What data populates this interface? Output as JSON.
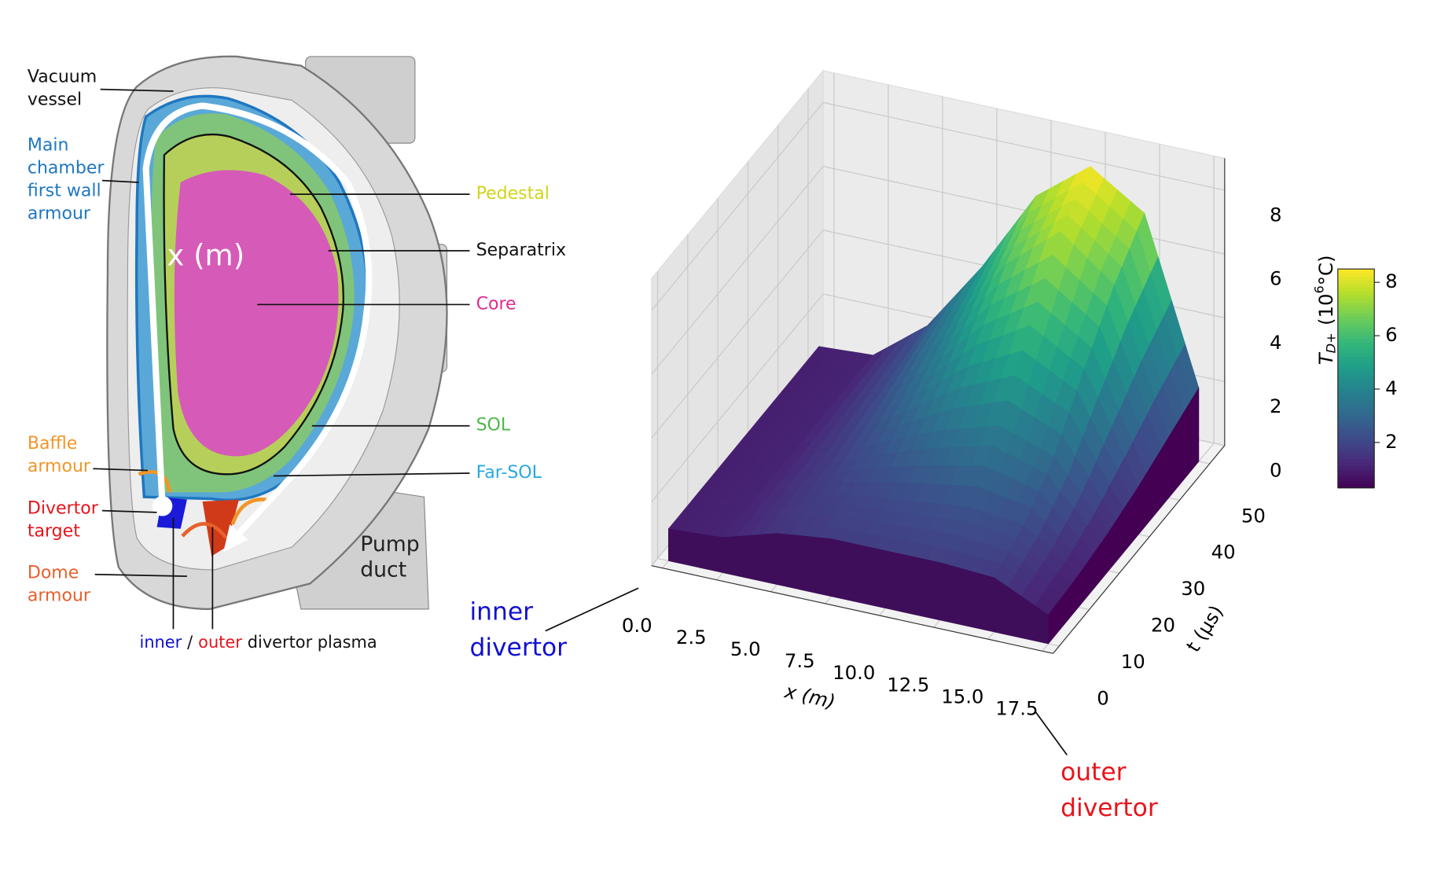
{
  "diagram": {
    "labels": [
      {
        "lines": [
          "Vacuum",
          "vessel"
        ],
        "color": "#111111"
      },
      {
        "lines": [
          "Main",
          "chamber",
          "first wall",
          "armour"
        ],
        "color": "#1f77c0"
      },
      {
        "lines": [
          "Baffle",
          "armour"
        ],
        "color": "#f0962a"
      },
      {
        "lines": [
          "Divertor",
          "target"
        ],
        "color": "#e8141c"
      },
      {
        "lines": [
          "Dome",
          "armour"
        ],
        "color": "#e8602c"
      },
      {
        "lines": [
          "Pedestal"
        ],
        "color": "#d2d41a"
      },
      {
        "lines": [
          "Separatrix"
        ],
        "color": "#111111"
      },
      {
        "lines": [
          "Core"
        ],
        "color": "#e0298f"
      },
      {
        "lines": [
          "SOL"
        ],
        "color": "#4cb848"
      },
      {
        "lines": [
          "Far-SOL"
        ],
        "color": "#29a8e0"
      },
      {
        "lines": [
          "Pump",
          "duct"
        ],
        "color": "#222222"
      }
    ],
    "path_label": "x (m)",
    "plasma_legend": [
      {
        "text": "inner",
        "color": "#1010d0"
      },
      {
        "text": "/",
        "color": "#111111"
      },
      {
        "text": "outer",
        "color": "#e8141c"
      },
      {
        "text": "divertor plasma",
        "color": "#111111"
      }
    ]
  },
  "chart_data": {
    "type": "surface3d",
    "xlabel": "x (m)",
    "ylabel": "t (µs)",
    "colorbar_label": {
      "symbol": "T",
      "subscript": "D+",
      "unit_base": "(10",
      "unit_exponent": "6",
      "unit_rest": "°C)"
    },
    "annotations": [
      {
        "lines": [
          "inner",
          "divertor"
        ],
        "color": "#1010d0"
      },
      {
        "lines": [
          "outer",
          "divertor"
        ],
        "color": "#e8141c"
      }
    ],
    "x": [
      0,
      2.5,
      5,
      7.5,
      10,
      12.5,
      15,
      17.5
    ],
    "t": [
      0,
      10,
      20,
      30,
      40,
      50
    ],
    "z": [
      [
        1.0,
        1.1,
        1.6,
        1.8,
        1.8,
        1.8,
        1.7,
        0.9
      ],
      [
        1.0,
        1.1,
        1.7,
        2.0,
        2.2,
        2.4,
        2.2,
        1.0
      ],
      [
        1.0,
        1.1,
        1.8,
        2.6,
        3.3,
        3.8,
        3.2,
        1.2
      ],
      [
        1.0,
        1.1,
        2.0,
        3.3,
        4.8,
        5.8,
        4.8,
        1.5
      ],
      [
        1.0,
        1.1,
        2.2,
        4.0,
        6.2,
        7.6,
        6.3,
        1.9
      ],
      [
        1.0,
        1.1,
        2.4,
        4.6,
        7.2,
        8.5,
        7.4,
        2.3
      ]
    ],
    "xlim": [
      -0.5,
      18
    ],
    "ylim": [
      -2,
      55
    ],
    "zlim": [
      0,
      9
    ],
    "xticks": [
      {
        "value": 0,
        "label": "0.0"
      },
      2.5,
      {
        "value": 5,
        "label": "5.0"
      },
      7.5,
      {
        "value": 10,
        "label": "10.0"
      },
      12.5,
      {
        "value": 15,
        "label": "15.0"
      },
      17.5
    ],
    "yticks": [
      0,
      10,
      20,
      30,
      40,
      50
    ],
    "zticks": [
      0,
      2,
      4,
      6,
      8
    ],
    "clim": [
      0.3,
      8.5
    ],
    "colorbar_ticks": [
      2,
      4,
      6,
      8
    ],
    "colormap": "viridis",
    "grid": true
  }
}
